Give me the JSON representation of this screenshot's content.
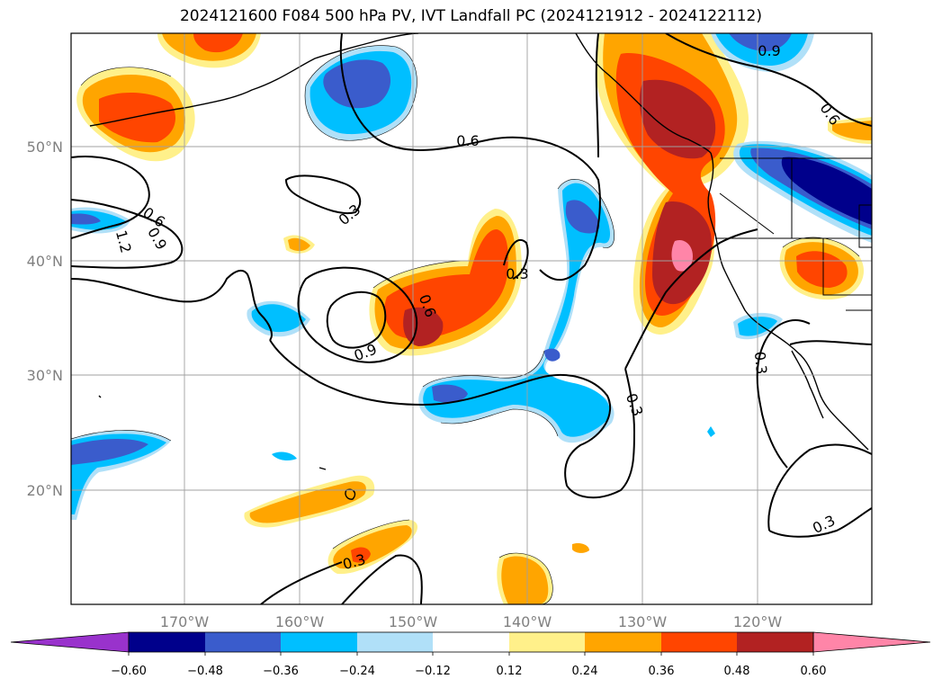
{
  "title": "2024121600 F084 500 hPa PV, IVT Landfall PC (2024121912 - 2024122112)",
  "map": {
    "lon_ticks": [
      "170°W",
      "160°W",
      "150°W",
      "140°W",
      "130°W",
      "120°W"
    ],
    "lat_ticks": [
      "50°N",
      "40°N",
      "30°N",
      "20°N"
    ],
    "contour_labels": [
      "0.9",
      "0.6",
      "0.6",
      "1.2",
      "0.9",
      "0.3",
      "0.6",
      "0.3",
      "0.9",
      "0.3",
      "0.6",
      "0.3",
      "0.3",
      "0.3"
    ]
  },
  "colorbar": {
    "ticks": [
      "−0.60",
      "−0.48",
      "−0.36",
      "−0.24",
      "−0.12",
      "0.12",
      "0.24",
      "0.36",
      "0.48",
      "0.60"
    ],
    "colors": [
      "#9932cc",
      "#00008b",
      "#3a5ccc",
      "#00bfff",
      "#b0e0f8",
      "#ffffff",
      "#fff08a",
      "#ffa500",
      "#ff4500",
      "#b22222",
      "#ff85a8",
      "#ff85a8"
    ]
  }
}
